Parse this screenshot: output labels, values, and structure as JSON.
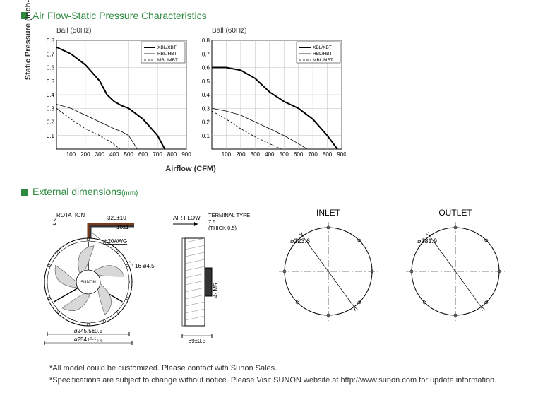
{
  "section1": {
    "title": "Air Flow-Static Pressure Characteristics"
  },
  "section2": {
    "title": "External dimensions",
    "sub": "(mm)"
  },
  "axes": {
    "ylabel": "Static Pressure (Inch-H₂O)",
    "xlabel": "Airflow (CFM)"
  },
  "chart_common": {
    "xlim": [
      0,
      900
    ],
    "ylim": [
      0,
      0.8
    ],
    "xticks": [
      100,
      200,
      300,
      400,
      500,
      600,
      700,
      800,
      900
    ],
    "yticks": [
      0.1,
      0.2,
      0.3,
      0.4,
      0.5,
      0.6,
      0.7,
      0.8
    ],
    "grid_color": "#bdbdbd",
    "axis_color": "#000000",
    "tick_fontsize": 8,
    "legend": [
      {
        "label": "XBL/XBT",
        "style": "bold",
        "dash": "none"
      },
      {
        "label": "HBL/HBT",
        "style": "thin",
        "dash": "none"
      },
      {
        "label": "MBL/MBT",
        "style": "thin",
        "dash": "dash"
      }
    ]
  },
  "chart50": {
    "title": "Ball (50Hz)",
    "series": [
      {
        "key": "XBL/XBT",
        "pts": [
          [
            0,
            0.75
          ],
          [
            100,
            0.7
          ],
          [
            200,
            0.62
          ],
          [
            300,
            0.5
          ],
          [
            350,
            0.4
          ],
          [
            400,
            0.35
          ],
          [
            450,
            0.32
          ],
          [
            500,
            0.3
          ],
          [
            600,
            0.22
          ],
          [
            700,
            0.1
          ],
          [
            750,
            0.0
          ]
        ]
      },
      {
        "key": "HBL/HBT",
        "pts": [
          [
            0,
            0.33
          ],
          [
            100,
            0.3
          ],
          [
            200,
            0.25
          ],
          [
            300,
            0.2
          ],
          [
            400,
            0.15
          ],
          [
            450,
            0.13
          ],
          [
            500,
            0.1
          ],
          [
            560,
            0.0
          ]
        ]
      },
      {
        "key": "MBL/MBT",
        "pts": [
          [
            0,
            0.3
          ],
          [
            100,
            0.22
          ],
          [
            200,
            0.15
          ],
          [
            300,
            0.1
          ],
          [
            380,
            0.05
          ],
          [
            440,
            0.0
          ]
        ]
      }
    ]
  },
  "chart60": {
    "title": "Ball (60Hz)",
    "series": [
      {
        "key": "XBL/XBT",
        "pts": [
          [
            0,
            0.6
          ],
          [
            100,
            0.6
          ],
          [
            200,
            0.58
          ],
          [
            300,
            0.52
          ],
          [
            400,
            0.42
          ],
          [
            500,
            0.35
          ],
          [
            600,
            0.3
          ],
          [
            700,
            0.22
          ],
          [
            800,
            0.1
          ],
          [
            870,
            0.0
          ]
        ]
      },
      {
        "key": "HBL/HBT",
        "pts": [
          [
            0,
            0.3
          ],
          [
            100,
            0.28
          ],
          [
            200,
            0.25
          ],
          [
            300,
            0.2
          ],
          [
            400,
            0.15
          ],
          [
            500,
            0.1
          ],
          [
            600,
            0.04
          ],
          [
            660,
            0.0
          ]
        ]
      },
      {
        "key": "MBL/MBT",
        "pts": [
          [
            0,
            0.28
          ],
          [
            100,
            0.22
          ],
          [
            200,
            0.15
          ],
          [
            300,
            0.09
          ],
          [
            400,
            0.04
          ],
          [
            480,
            0.0
          ]
        ]
      }
    ]
  },
  "dims": {
    "rotation": "ROTATION",
    "wire_len": "320±10",
    "wire_strip": "10±1",
    "wire_gauge": "#20AWG",
    "holes": "16-ø4.5",
    "brand": "SUNON",
    "dia_inner": "ø245.5±0.5",
    "dia_outer": "ø254±⁰·⁵₀.₅",
    "airflow": "AIR FLOW",
    "terminal_l1": "TERMINAL TYPE",
    "terminal_l2": "7.5",
    "terminal_l3": "(THICK 0.5)",
    "screw": "4- M5",
    "depth": "89±0.5",
    "inlet_label": "INLET",
    "inlet_dia": "ø223.6",
    "outlet_label": "OUTLET",
    "outlet_dia": "ø231.9"
  },
  "footnotes": {
    "l1": "*All model could be customized. Please contact with Sunon Sales.",
    "l2": "*Specifications are subject to change without notice. Please  Visit SUNON website at http://www.sunon.com for update information."
  },
  "colors": {
    "green": "#2d8a3e",
    "line": "#000000"
  }
}
